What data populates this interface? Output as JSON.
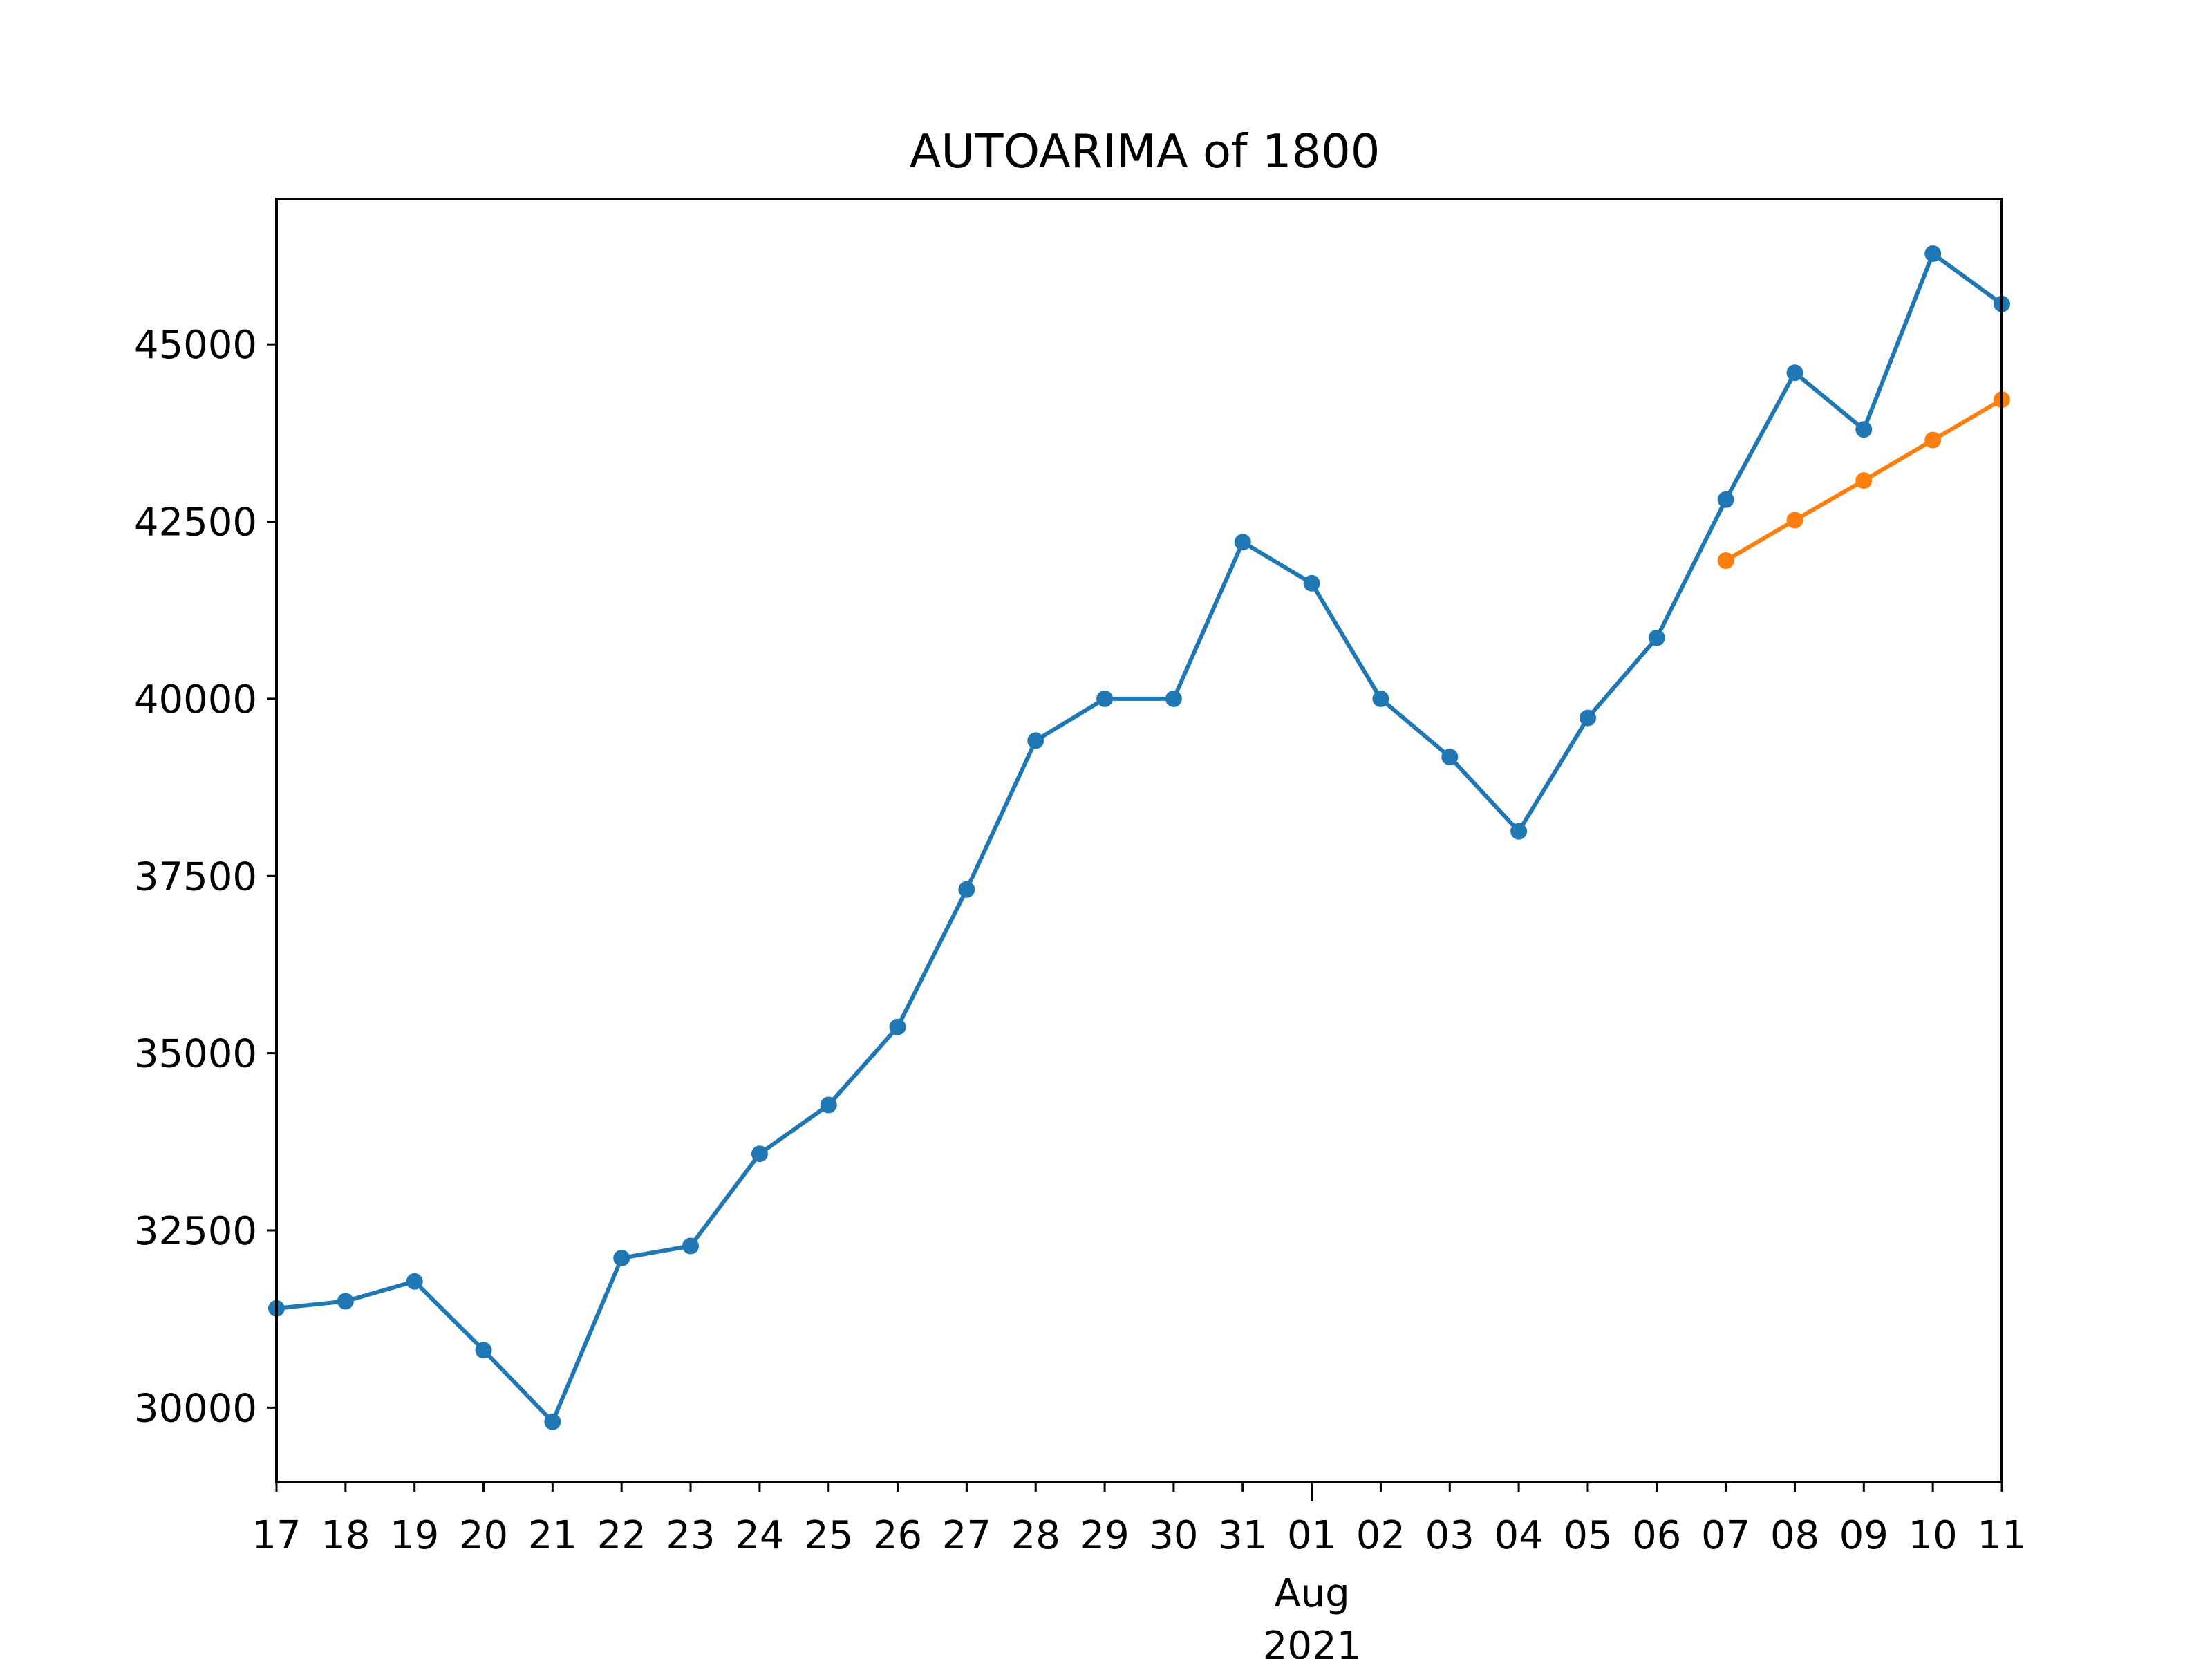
{
  "chart_data": {
    "type": "line",
    "title": "AUTOARIMA of 1800",
    "xlabel": "",
    "ylabel": "",
    "x": [
      "2021-07-17",
      "2021-07-18",
      "2021-07-19",
      "2021-07-20",
      "2021-07-21",
      "2021-07-22",
      "2021-07-23",
      "2021-07-24",
      "2021-07-25",
      "2021-07-26",
      "2021-07-27",
      "2021-07-28",
      "2021-07-29",
      "2021-07-30",
      "2021-07-31",
      "2021-08-01",
      "2021-08-02",
      "2021-08-03",
      "2021-08-04",
      "2021-08-05",
      "2021-08-06",
      "2021-08-07",
      "2021-08-08",
      "2021-08-09",
      "2021-08-10",
      "2021-08-11"
    ],
    "x_tick_labels": [
      "17",
      "18",
      "19",
      "20",
      "21",
      "22",
      "23",
      "24",
      "25",
      "26",
      "27",
      "28",
      "29",
      "30",
      "31",
      "01",
      "02",
      "03",
      "04",
      "05",
      "06",
      "07",
      "08",
      "09",
      "10",
      "11"
    ],
    "x_major_label": [
      "Aug",
      "2021"
    ],
    "y_ticks": [
      30000,
      32500,
      35000,
      37500,
      40000,
      42500,
      45000
    ],
    "y_tick_labels": [
      "30000",
      "32500",
      "35000",
      "37500",
      "40000",
      "42500",
      "45000"
    ],
    "ylim": [
      28950,
      47050
    ],
    "grid": false,
    "series": [
      {
        "color": "#1f77b4",
        "x": [
          "2021-07-17",
          "2021-07-18",
          "2021-07-19",
          "2021-07-20",
          "2021-07-21",
          "2021-07-22",
          "2021-07-23",
          "2021-07-24",
          "2021-07-25",
          "2021-07-26",
          "2021-07-27",
          "2021-07-28",
          "2021-07-29",
          "2021-07-30",
          "2021-07-31",
          "2021-08-01",
          "2021-08-02",
          "2021-08-03",
          "2021-08-04",
          "2021-08-05",
          "2021-08-06",
          "2021-08-07",
          "2021-08-08",
          "2021-08-09",
          "2021-08-10",
          "2021-08-11"
        ],
        "values": [
          31400,
          31500,
          31780,
          30810,
          29800,
          32110,
          32280,
          33580,
          34270,
          35370,
          37310,
          39410,
          40000,
          40000,
          42210,
          41630,
          40000,
          39180,
          38130,
          39730,
          40860,
          42810,
          44600,
          43800,
          46280,
          45570
        ]
      },
      {
        "color": "#ff7f0e",
        "x": [
          "2021-08-07",
          "2021-08-08",
          "2021-08-09",
          "2021-08-10",
          "2021-08-11"
        ],
        "values": [
          41950,
          42520,
          43080,
          43650,
          44220
        ]
      }
    ]
  }
}
